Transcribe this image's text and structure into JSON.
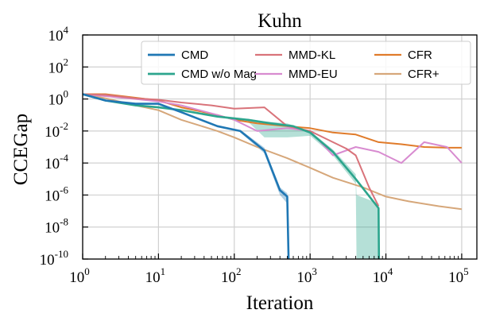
{
  "chart_data": {
    "type": "line",
    "title": "Kuhn",
    "xlabel": "Iteration",
    "ylabel": "CCEGap",
    "xscale": "log",
    "yscale": "log",
    "xlim_exp": [
      0,
      5.2
    ],
    "ylim_exp": [
      -10,
      4
    ],
    "xticks_exp": [
      0,
      1,
      2,
      3,
      4,
      5
    ],
    "yticks_exp": [
      -10,
      -8,
      -6,
      -4,
      -2,
      0,
      2,
      4
    ],
    "tick_base": "10",
    "grid": true,
    "legend_position": "top-right",
    "series": [
      {
        "name": "CMD",
        "color": "#1f77b4",
        "x": [
          1,
          2,
          5,
          10,
          20,
          60,
          120,
          250,
          400,
          500,
          520
        ],
        "y": [
          2,
          0.8,
          0.5,
          0.5,
          0.15,
          0.02,
          0.01,
          0.0006,
          2e-06,
          8e-07,
          1e-10
        ],
        "band": {
          "x": [
            120,
            250,
            400,
            500
          ],
          "lower": [
            0.008,
            0.0004,
            1e-06,
            3e-07
          ],
          "upper": [
            0.012,
            0.0009,
            3e-06,
            1.3e-06
          ]
        }
      },
      {
        "name": "CMD w/o Mag",
        "color": "#2ca58d",
        "x": [
          1,
          2,
          5,
          10,
          20,
          60,
          150,
          300,
          600,
          1000,
          2000,
          4000,
          8000,
          8100
        ],
        "y": [
          2,
          0.8,
          0.4,
          0.3,
          0.2,
          0.08,
          0.05,
          0.03,
          0.02,
          0.008,
          0.0005,
          1e-05,
          1.5e-07,
          1e-10
        ],
        "band": {
          "x": [
            150,
            250,
            500,
            1000,
            2000,
            4000,
            4100,
            8000
          ],
          "lower": [
            0.04,
            0.004,
            0.004,
            0.005,
            0.0003,
            5e-06,
            1e-10,
            1e-10
          ],
          "upper": [
            0.06,
            0.04,
            0.03,
            0.01,
            0.0007,
            2e-05,
            1e-06,
            3e-07
          ]
        }
      },
      {
        "name": "MMD-KL",
        "color": "#d9737a",
        "x": [
          1,
          2,
          5,
          10,
          20,
          50,
          100,
          250,
          500,
          1000,
          2000,
          3000,
          4000,
          6000,
          8000
        ],
        "y": [
          2,
          1.8,
          1.1,
          0.9,
          0.6,
          0.4,
          0.25,
          0.3,
          0.02,
          0.01,
          0.002,
          0.0008,
          0.0003,
          3e-06,
          2e-07
        ]
      },
      {
        "name": "MMD-EU",
        "color": "#d88bd0",
        "x": [
          1,
          2,
          5,
          10,
          20,
          60,
          100,
          200,
          500,
          1000,
          2000,
          4000,
          8000,
          16000,
          32000,
          64000,
          100000
        ],
        "y": [
          2,
          1.5,
          1.0,
          0.7,
          0.4,
          0.1,
          0.05,
          0.01,
          0.015,
          0.01,
          0.0003,
          0.001,
          0.0005,
          0.0001,
          0.002,
          0.001,
          0.0001
        ]
      },
      {
        "name": "CFR",
        "color": "#e07b2a",
        "x": [
          1,
          2,
          5,
          10,
          20,
          60,
          100,
          200,
          500,
          1000,
          2000,
          4000,
          8000,
          16000,
          32000,
          64000,
          100000
        ],
        "y": [
          2,
          2,
          1.2,
          0.8,
          0.3,
          0.1,
          0.05,
          0.03,
          0.02,
          0.015,
          0.008,
          0.006,
          0.002,
          0.0015,
          0.001,
          0.0009,
          0.0009
        ]
      },
      {
        "name": "CFR+",
        "color": "#d6a77a",
        "x": [
          1,
          2,
          5,
          10,
          20,
          60,
          100,
          200,
          500,
          1000,
          2000,
          5000,
          10000,
          20000,
          50000,
          100000
        ],
        "y": [
          2,
          1.1,
          0.4,
          0.2,
          0.05,
          0.01,
          0.004,
          0.001,
          0.0002,
          5e-05,
          1.2e-05,
          3e-06,
          8e-07,
          4e-07,
          2e-07,
          1.3e-07
        ]
      }
    ],
    "legend_order": [
      0,
      2,
      4,
      1,
      3,
      5
    ]
  }
}
